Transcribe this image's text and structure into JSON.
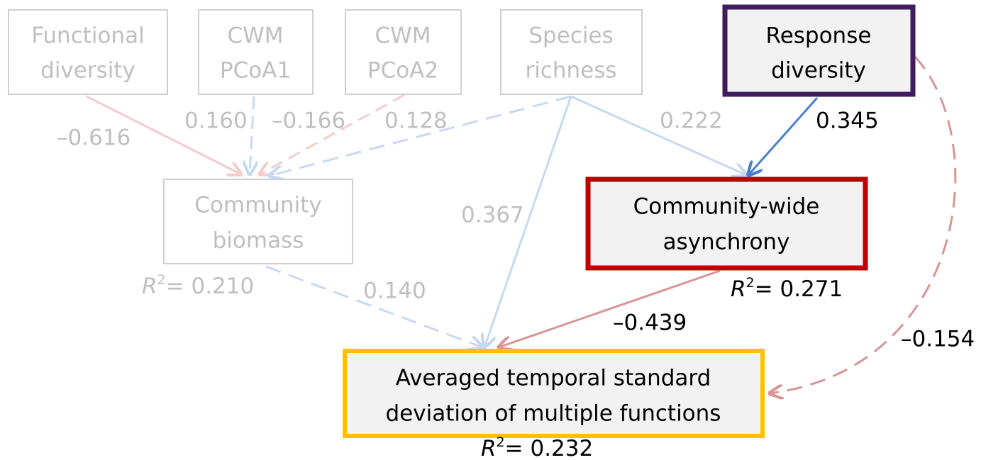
{
  "nodes": [
    {
      "label": [
        "Functional",
        "diversity"
      ]
    },
    {
      "label": [
        "CWM",
        "PCoA1"
      ]
    },
    {
      "label": [
        "CWM",
        "PCoA2"
      ]
    },
    {
      "label": [
        "Species",
        "richness"
      ]
    },
    {
      "label": [
        "Response",
        "diversity"
      ]
    },
    {
      "label": [
        "Community",
        "biomass"
      ],
      "r2": {
        "symbol": "R",
        "sup": "2",
        "text": "= 0.210"
      }
    },
    {
      "label": [
        "Community-wide",
        "asynchrony"
      ],
      "r2": {
        "symbol": "R",
        "sup": "2",
        "text": "= 0.271"
      }
    },
    {
      "label": [
        "Averaged temporal standard",
        "deviation of multiple functions"
      ],
      "r2": {
        "symbol": "R",
        "sup": "2",
        "text": "= 0.232"
      }
    }
  ],
  "edges": [
    {
      "label": "–0.616"
    },
    {
      "label": "0.160"
    },
    {
      "label": "–0.166"
    },
    {
      "label": "0.128"
    },
    {
      "label": "0.222"
    },
    {
      "label": "0.345"
    },
    {
      "label": "0.367"
    },
    {
      "label": "0.140"
    },
    {
      "label": "–0.439"
    },
    {
      "label": "–0.154"
    }
  ]
}
